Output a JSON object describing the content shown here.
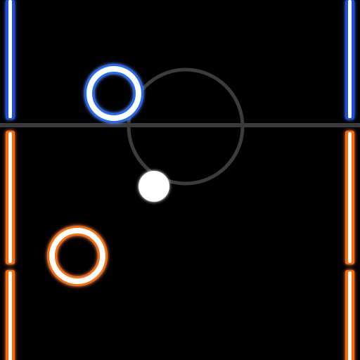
{
  "game": {
    "colors": {
      "background": "#000000",
      "top_wall": "#1f5bff",
      "bottom_wall": "#ff6a00",
      "center_line": "#3a3a3a",
      "center_circle": "#3c3c3c",
      "top_paddle": "#1f6bff",
      "bottom_paddle": "#ff6a00",
      "puck": "#ffffff",
      "glow_core": "#ffffff"
    },
    "elements": {
      "top_player_paddle": "ring",
      "bottom_player_paddle": "ring",
      "puck": "disc",
      "center_line": "line",
      "center_circle": "ring",
      "left_wall_top": "glowing-bar",
      "right_wall_top": "glowing-bar",
      "left_wall_bottom": "glowing-bar",
      "right_wall_bottom": "glowing-bar"
    }
  }
}
